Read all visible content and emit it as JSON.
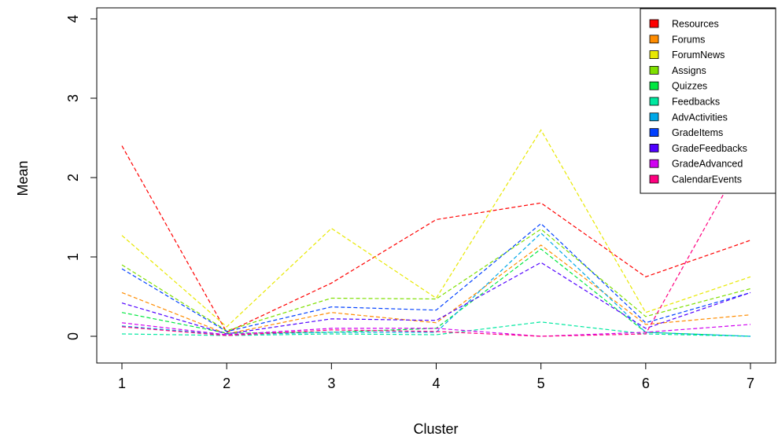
{
  "chart_data": {
    "type": "line",
    "title": "",
    "xlabel": "Cluster",
    "ylabel": "Mean",
    "x": [
      1,
      2,
      3,
      4,
      5,
      6,
      7
    ],
    "x_ticks": [
      "1",
      "2",
      "3",
      "4",
      "5",
      "6",
      "7"
    ],
    "y_ticks": [
      "0",
      "1",
      "2",
      "3",
      "4"
    ],
    "xlim": [
      1,
      7
    ],
    "ylim": [
      0,
      4
    ],
    "grid": false,
    "line_style": "dashed",
    "legend_position": "top-right",
    "series": [
      {
        "name": "Resources",
        "color": "#FF0000",
        "values": [
          2.4,
          0.05,
          0.67,
          1.47,
          1.68,
          0.75,
          1.21
        ]
      },
      {
        "name": "Forums",
        "color": "#FF8C00",
        "values": [
          0.55,
          0.03,
          0.3,
          0.17,
          1.15,
          0.15,
          0.27
        ]
      },
      {
        "name": "ForumNews",
        "color": "#E8E800",
        "values": [
          1.27,
          0.12,
          1.36,
          0.48,
          2.6,
          0.3,
          0.75
        ]
      },
      {
        "name": "Assigns",
        "color": "#7FE000",
        "values": [
          0.9,
          0.07,
          0.48,
          0.47,
          1.35,
          0.25,
          0.6
        ]
      },
      {
        "name": "Quizzes",
        "color": "#00E840",
        "values": [
          0.3,
          0.04,
          0.05,
          0.1,
          1.1,
          0.05,
          0.0
        ]
      },
      {
        "name": "Feedbacks",
        "color": "#00E8A0",
        "values": [
          0.03,
          0.01,
          0.03,
          0.02,
          0.18,
          0.03,
          0.0
        ]
      },
      {
        "name": "AdvActivities",
        "color": "#00A8E8",
        "values": [
          0.13,
          0.02,
          0.05,
          0.05,
          1.3,
          0.05,
          0.0
        ]
      },
      {
        "name": "GradeItems",
        "color": "#0040FF",
        "values": [
          0.85,
          0.06,
          0.37,
          0.33,
          1.42,
          0.17,
          0.55
        ]
      },
      {
        "name": "GradeFeedbacks",
        "color": "#5000FF",
        "values": [
          0.42,
          0.03,
          0.22,
          0.2,
          0.93,
          0.1,
          0.55
        ]
      },
      {
        "name": "GradeAdvanced",
        "color": "#D000F0",
        "values": [
          0.17,
          0.02,
          0.1,
          0.1,
          0.0,
          0.05,
          0.15
        ]
      },
      {
        "name": "CalendarEvents",
        "color": "#FF0080",
        "values": [
          0.12,
          0.01,
          0.08,
          0.06,
          0.0,
          0.03,
          2.4
        ]
      }
    ]
  }
}
